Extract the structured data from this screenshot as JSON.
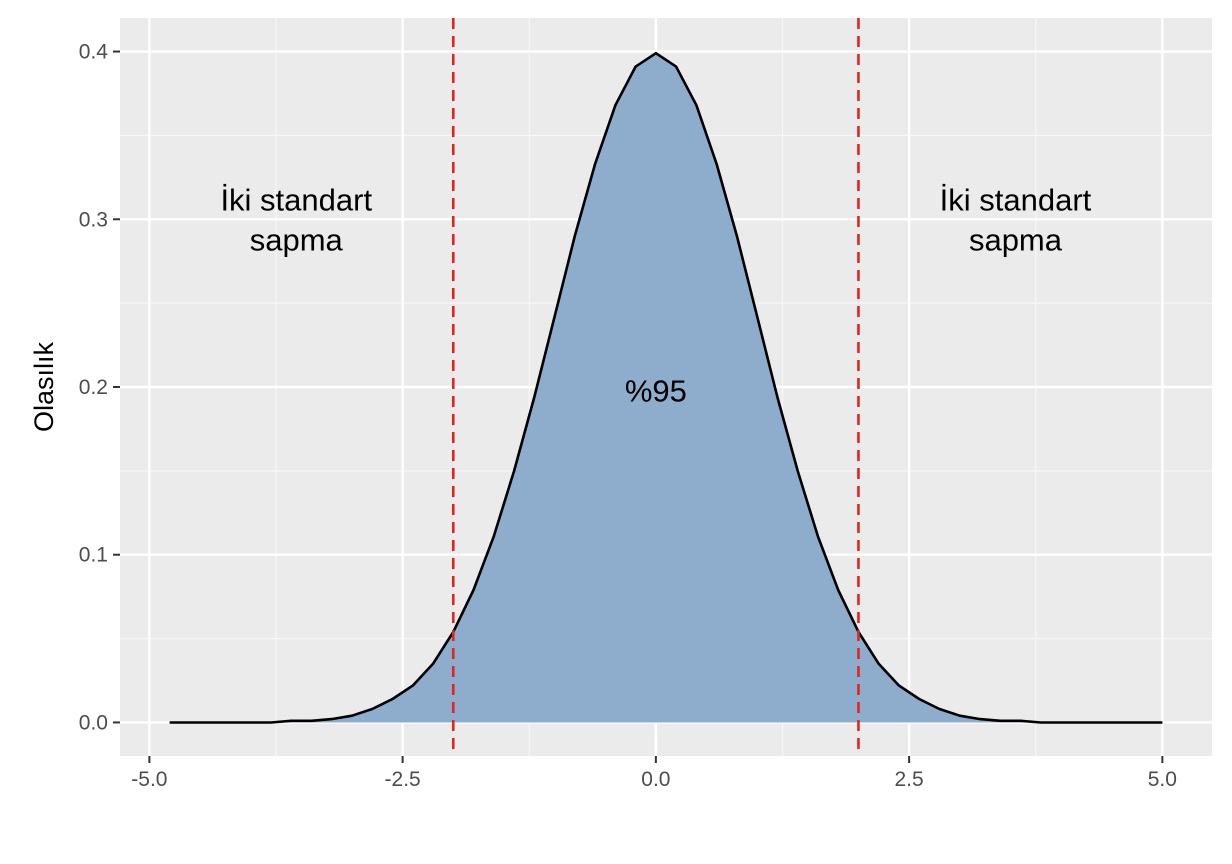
{
  "chart_data": {
    "type": "area",
    "y_label": "Olasılık",
    "x": [
      -4.8,
      -4.6,
      -4.4,
      -4.2,
      -4.0,
      -3.8,
      -3.6,
      -3.4,
      -3.2,
      -3.0,
      -2.8,
      -2.6,
      -2.4,
      -2.2,
      -2.0,
      -1.8,
      -1.6,
      -1.4,
      -1.2,
      -1.0,
      -0.8,
      -0.6,
      -0.4,
      -0.2,
      0,
      0.2,
      0.4,
      0.6,
      0.8,
      1.0,
      1.2,
      1.4,
      1.6,
      1.8,
      2.0,
      2.2,
      2.4,
      2.6,
      2.8,
      3.0,
      3.2,
      3.4,
      3.6,
      3.8,
      4.0,
      4.2,
      4.4,
      4.6,
      4.8,
      5.0
    ],
    "values": [
      0,
      0,
      0,
      0,
      0,
      0,
      0.001,
      0.001,
      0.002,
      0.004,
      0.008,
      0.014,
      0.022,
      0.035,
      0.054,
      0.079,
      0.111,
      0.15,
      0.194,
      0.242,
      0.29,
      0.333,
      0.368,
      0.391,
      0.399,
      0.391,
      0.368,
      0.333,
      0.29,
      0.242,
      0.194,
      0.15,
      0.111,
      0.079,
      0.054,
      0.035,
      0.022,
      0.014,
      0.008,
      0.004,
      0.002,
      0.001,
      0.001,
      0,
      0,
      0,
      0,
      0,
      0,
      0
    ],
    "fill_color": "#8eaccb",
    "line_color": "#000000",
    "vlines": [
      -2,
      2
    ],
    "vline_color": "#e0261c",
    "annotations": [
      [
        "İki standart",
        "sapma"
      ],
      [
        "%95"
      ],
      [
        "İki standart",
        "sapma"
      ]
    ],
    "xlim": [
      -5.29,
      5.49
    ],
    "ylim": [
      -0.02,
      0.42
    ],
    "xticks": [
      {
        "value": -5,
        "label": "-5.0"
      },
      -2.5,
      {
        "value": 0,
        "label": "0.0"
      },
      2.5,
      {
        "value": 5,
        "label": "5.0"
      }
    ],
    "yticks": [
      {
        "value": 0,
        "label": "0.0"
      },
      0.1,
      0.2,
      0.3,
      0.4
    ],
    "grid": true,
    "minor_grid": true
  }
}
